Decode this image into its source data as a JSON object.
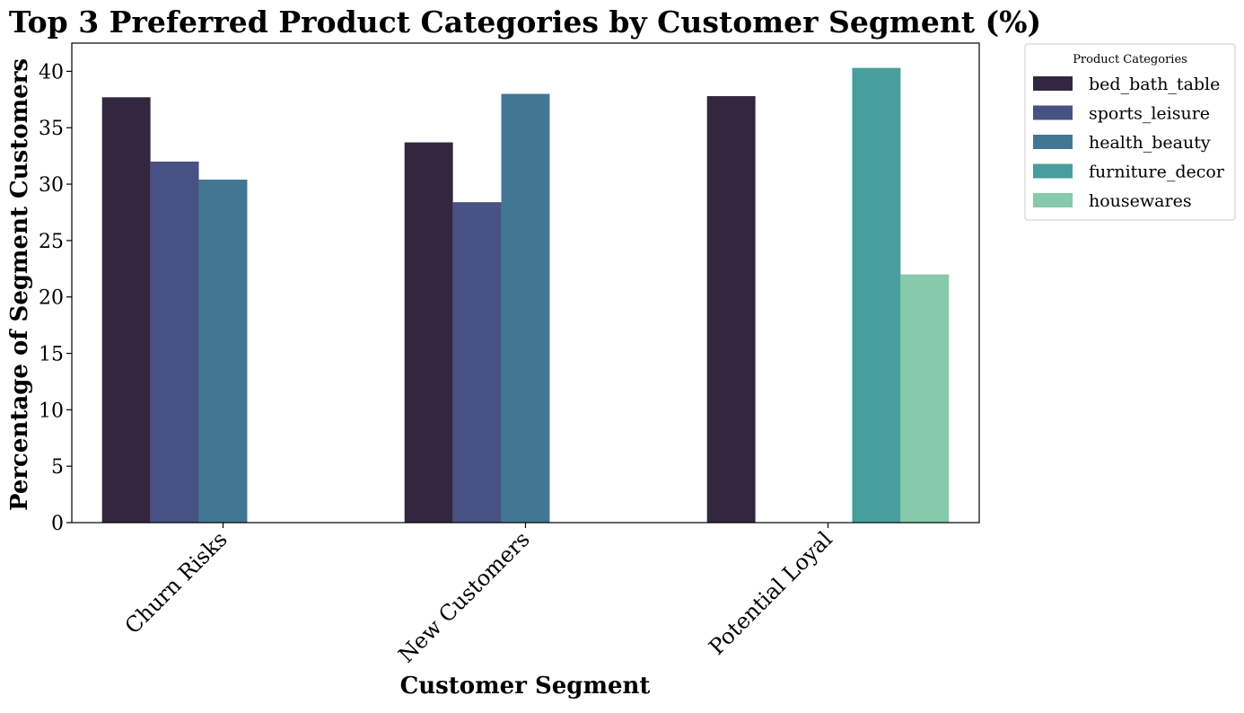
{
  "chart_data": {
    "type": "bar",
    "title": "Top 3 Preferred Product Categories by Customer Segment (%)",
    "xlabel": "Customer Segment",
    "ylabel": "Percentage of Segment Customers",
    "categories": [
      "Churn Risks",
      "New Customers",
      "Potential Loyal"
    ],
    "ylim": [
      0,
      42.5
    ],
    "yticks": [
      0,
      5,
      10,
      15,
      20,
      25,
      30,
      35,
      40
    ],
    "grid": false,
    "legend": {
      "title": "Product Categories",
      "placement": "outside-top-right"
    },
    "series": [
      {
        "name": "bed_bath_table",
        "color": "#33263f",
        "values": [
          37.7,
          33.7,
          37.8
        ]
      },
      {
        "name": "sports_leisure",
        "color": "#485183",
        "values": [
          32.0,
          28.4,
          null
        ]
      },
      {
        "name": "health_beauty",
        "color": "#427794",
        "values": [
          30.4,
          38.0,
          null
        ]
      },
      {
        "name": "furniture_decor",
        "color": "#479e9e",
        "values": [
          null,
          null,
          40.3
        ]
      },
      {
        "name": "housewares",
        "color": "#86c9ab",
        "values": [
          null,
          null,
          22.0
        ]
      }
    ]
  }
}
